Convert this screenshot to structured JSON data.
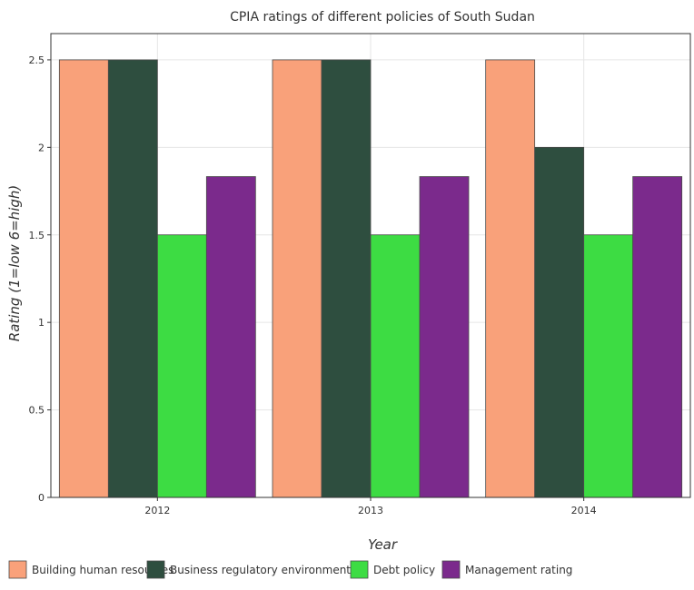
{
  "chart_data": {
    "type": "bar",
    "title": "CPIA ratings of different policies of South Sudan",
    "xlabel": "Year",
    "ylabel": "Rating (1=low 6=high)",
    "categories": [
      "2012",
      "2013",
      "2014"
    ],
    "ylim": [
      0,
      2.65
    ],
    "yticks": [
      0,
      0.5,
      1,
      1.5,
      2,
      2.5
    ],
    "ytick_labels": [
      "0",
      "0.5",
      "1",
      "1.5",
      "2",
      "2.5"
    ],
    "grid": true,
    "legend_position": "bottom",
    "series": [
      {
        "name": "Building human resources",
        "color": "#f9a17a",
        "values": [
          2.5,
          2.5,
          2.5
        ]
      },
      {
        "name": "Business regulatory environment",
        "color": "#2e4e3f",
        "values": [
          2.5,
          2.5,
          2.0
        ]
      },
      {
        "name": "Debt policy",
        "color": "#3ddc43",
        "values": [
          1.5,
          1.5,
          1.5
        ]
      },
      {
        "name": "Management rating",
        "color": "#7b2a8c",
        "values": [
          1.833,
          1.833,
          1.833
        ]
      }
    ]
  }
}
